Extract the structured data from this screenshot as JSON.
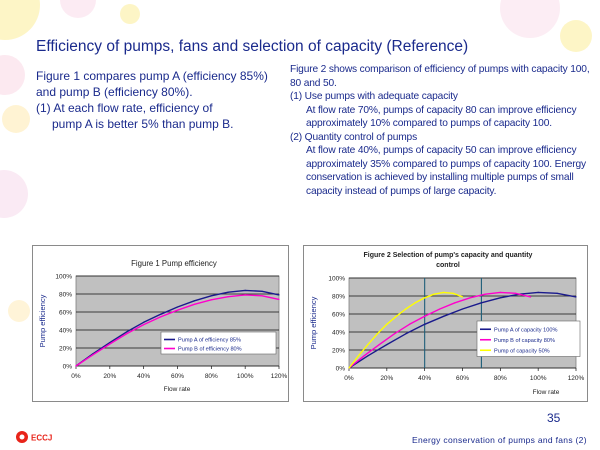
{
  "slide": {
    "title": "Efficiency of pumps, fans and selection of capacity (Reference)",
    "left_text": [
      "Figure 1 compares pump A (efficiency 85%) and pump B (efficiency 80%).",
      "(1) At each flow rate, efficiency of",
      "pump A is better 5% than pump B."
    ],
    "right_text": {
      "intro": "Figure 2 shows comparison of efficiency of pumps with capacity 100, 80 and 50.",
      "item1_head": "(1) Use pumps with adequate capacity",
      "item1_body": "At flow rate 70%, pumps of capacity 80 can improve efficiency approximately 10% compared to pumps of capacity 100.",
      "item2_head": "(2) Quantity control of pumps",
      "item2_body": "At flow rate 40%, pumps of capacity 50 can improve efficiency approximately 35% compared to pumps of capacity 100. Energy conservation is achieved by installing multiple pumps of small capacity instead of pumps of large capacity."
    },
    "page_number": "35",
    "footer": "Energy conservation  of pumps and fans (2)",
    "logo_text": "ECCJ"
  },
  "chart_data": [
    {
      "type": "line",
      "title": "Figure 1 Pump efficiency",
      "xlabel": "Flow rate",
      "ylabel": "Pump efficiency",
      "xlim": [
        0,
        120
      ],
      "ylim": [
        0,
        100
      ],
      "x_ticks": [
        "0%",
        "20%",
        "40%",
        "60%",
        "80%",
        "100%",
        "120%"
      ],
      "y_ticks": [
        "0%",
        "20%",
        "40%",
        "60%",
        "80%",
        "100%"
      ],
      "grid": true,
      "legend_position": "bottom-right",
      "series": [
        {
          "name": "Pump A of efficiency 85%",
          "color": "#1a1a8c",
          "x": [
            0,
            10,
            20,
            30,
            40,
            50,
            60,
            70,
            80,
            90,
            100,
            110,
            120
          ],
          "y": [
            0,
            13.5,
            26,
            38,
            48.5,
            57.5,
            65.5,
            72.5,
            78,
            82,
            84,
            83,
            79
          ]
        },
        {
          "name": "Pump B of efficiency 80%",
          "color": "#ff00cc",
          "x": [
            0,
            10,
            20,
            30,
            40,
            50,
            60,
            70,
            80,
            90,
            100,
            110,
            120
          ],
          "y": [
            0,
            12.5,
            24.5,
            36,
            46,
            54.5,
            62,
            68.5,
            73.5,
            77,
            79,
            78,
            74
          ]
        }
      ]
    },
    {
      "type": "line",
      "title": "Figure 2 Selection of pump's capacity and quantity control",
      "xlabel": "Flow rate",
      "ylabel": "Pump efficiency",
      "xlim": [
        0,
        120
      ],
      "ylim": [
        0,
        100
      ],
      "x_ticks": [
        "0%",
        "20%",
        "40%",
        "60%",
        "80%",
        "100%",
        "120%"
      ],
      "y_ticks": [
        "0%",
        "20%",
        "40%",
        "60%",
        "80%",
        "100%"
      ],
      "grid": true,
      "legend_position": "bottom-right",
      "vertical_markers": [
        40,
        70
      ],
      "series": [
        {
          "name": "Pump A of capacity 100%",
          "color": "#1a1a8c",
          "x": [
            0,
            10,
            20,
            30,
            40,
            50,
            60,
            70,
            80,
            90,
            100,
            110,
            120
          ],
          "y": [
            0,
            13.5,
            26,
            38,
            48.5,
            57.5,
            65.5,
            72.5,
            78,
            82,
            84,
            83,
            79
          ]
        },
        {
          "name": "Pump B of capacity 80%",
          "color": "#ff00cc",
          "x": [
            0,
            8,
            16,
            24,
            32,
            40,
            48,
            56,
            64,
            72,
            80,
            88,
            96
          ],
          "y": [
            0,
            13.5,
            26,
            38,
            48.5,
            57.5,
            65.5,
            72.5,
            78,
            82,
            84,
            83,
            79
          ]
        },
        {
          "name": "Pump of  capacity 50%",
          "color": "#ffff00",
          "x": [
            0,
            5,
            10,
            15,
            20,
            25,
            30,
            35,
            40,
            45,
            50,
            55,
            60
          ],
          "y": [
            0,
            13.5,
            26,
            38,
            48.5,
            57.5,
            65.5,
            72.5,
            78,
            82,
            84,
            83,
            79
          ]
        }
      ]
    }
  ]
}
